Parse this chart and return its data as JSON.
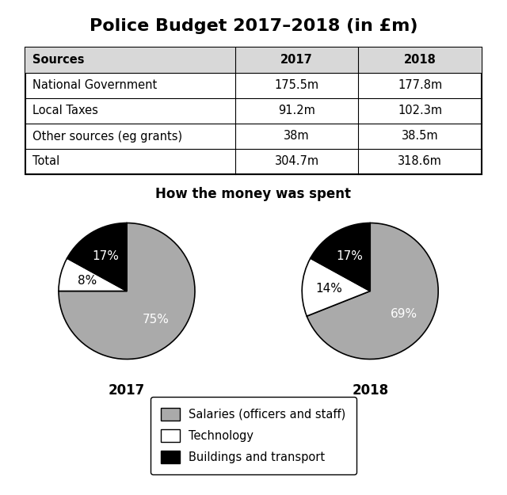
{
  "title": "Police Budget 2017–2018 (in £m)",
  "table": {
    "headers": [
      "Sources",
      "2017",
      "2018"
    ],
    "rows": [
      [
        "National Government",
        "175.5m",
        "177.8m"
      ],
      [
        "Local Taxes",
        "91.2m",
        "102.3m"
      ],
      [
        "Other sources (eg grants)",
        "38m",
        "38.5m"
      ],
      [
        "Total",
        "304.7m",
        "318.6m"
      ]
    ]
  },
  "pie_title": "How the money was spent",
  "pie_2017": {
    "label": "2017",
    "values": [
      75,
      8,
      17
    ],
    "labels": [
      "75%",
      "8%",
      "17%"
    ],
    "colors": [
      "#aaaaaa",
      "#ffffff",
      "#000000"
    ],
    "startangle": 90,
    "wedge_edge_color": "#000000"
  },
  "pie_2018": {
    "label": "2018",
    "values": [
      69,
      14,
      17
    ],
    "labels": [
      "69%",
      "14%",
      "17%"
    ],
    "colors": [
      "#aaaaaa",
      "#ffffff",
      "#000000"
    ],
    "startangle": 90,
    "wedge_edge_color": "#000000"
  },
  "legend_labels": [
    "Salaries (officers and staff)",
    "Technology",
    "Buildings and transport"
  ],
  "legend_colors": [
    "#aaaaaa",
    "#ffffff",
    "#000000"
  ],
  "background_color": "#ffffff",
  "title_fontsize": 16,
  "table_fontsize": 10.5,
  "pie_label_fontsize": 11,
  "pie_year_fontsize": 12,
  "pie_title_fontsize": 12
}
